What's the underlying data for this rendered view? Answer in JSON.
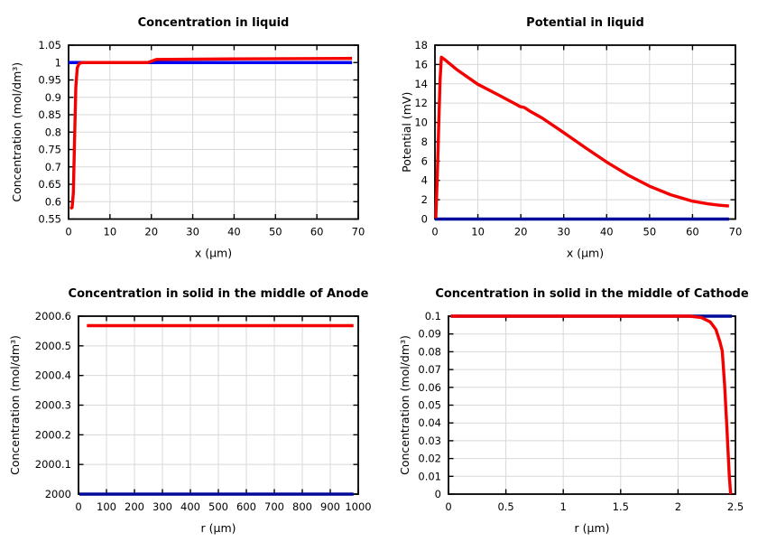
{
  "figure": {
    "background": "#ffffff",
    "grid_color": "#d8d8d8",
    "frame_color": "#000000",
    "text_color": "#000000"
  },
  "chart_data": [
    {
      "type": "line",
      "title": "Concentration in liquid",
      "xlabel": "x (µm)",
      "ylabel": "Concentration (mol/dm³)",
      "xlim": [
        0,
        70
      ],
      "ylim": [
        0.55,
        1.05
      ],
      "grid": true,
      "legend": "none",
      "xticks": [
        0,
        10,
        20,
        30,
        40,
        50,
        60,
        70
      ],
      "xtick_labels": [
        "0",
        "10",
        "20",
        "30",
        "40",
        "50",
        "60",
        "70"
      ],
      "yticks": [
        0.55,
        0.6,
        0.65,
        0.7,
        0.75,
        0.8,
        0.85,
        0.9,
        0.95,
        1,
        1.05
      ],
      "ytick_labels": [
        "0.55",
        "0.6",
        "0.65",
        "0.7",
        "0.75",
        "0.8",
        "0.85",
        "0.9",
        "0.95",
        "1",
        "1.05"
      ],
      "series": [
        {
          "name": "blue-series",
          "color": "#0000f2",
          "width": 3.4,
          "points": [
            [
              0,
              1.0
            ],
            [
              68.5,
              1.0
            ]
          ]
        },
        {
          "name": "red-series",
          "color": "#f40000",
          "width": 3.4,
          "points": [
            [
              0.4,
              0.58
            ],
            [
              0.85,
              0.583
            ],
            [
              1.15,
              0.625
            ],
            [
              1.45,
              0.78
            ],
            [
              1.75,
              0.93
            ],
            [
              2.1,
              0.985
            ],
            [
              2.6,
              0.998
            ],
            [
              3.5,
              1.0
            ],
            [
              19.2,
              1.0
            ],
            [
              20.3,
              1.005
            ],
            [
              21.2,
              1.009
            ],
            [
              40,
              1.0105
            ],
            [
              68.5,
              1.012
            ]
          ]
        }
      ]
    },
    {
      "type": "line",
      "title": "Potential in liquid",
      "xlabel": "x (µm)",
      "ylabel": "Potential (mV)",
      "xlim": [
        0,
        70
      ],
      "ylim": [
        0,
        18
      ],
      "grid": true,
      "legend": "none",
      "xticks": [
        0,
        10,
        20,
        30,
        40,
        50,
        60,
        70
      ],
      "xtick_labels": [
        "0",
        "10",
        "20",
        "30",
        "40",
        "50",
        "60",
        "70"
      ],
      "yticks": [
        0,
        2,
        4,
        6,
        8,
        10,
        12,
        14,
        16,
        18
      ],
      "ytick_labels": [
        "0",
        "2",
        "4",
        "6",
        "8",
        "10",
        "12",
        "14",
        "16",
        "18"
      ],
      "series": [
        {
          "name": "blue-series",
          "color": "#000a99",
          "width": 3.4,
          "points": [
            [
              0,
              0
            ],
            [
              68.5,
              0
            ]
          ]
        },
        {
          "name": "red-series",
          "color": "#f40000",
          "width": 3.4,
          "points": [
            [
              0.2,
              0.1
            ],
            [
              0.55,
              4.5
            ],
            [
              0.9,
              10
            ],
            [
              1.2,
              14.5
            ],
            [
              1.5,
              16.75
            ],
            [
              2.3,
              16.5
            ],
            [
              5,
              15.5
            ],
            [
              10,
              13.95
            ],
            [
              15,
              12.8
            ],
            [
              19,
              11.85
            ],
            [
              19.8,
              11.65
            ],
            [
              20.8,
              11.55
            ],
            [
              22,
              11.2
            ],
            [
              25,
              10.45
            ],
            [
              30,
              8.95
            ],
            [
              35,
              7.4
            ],
            [
              40,
              5.9
            ],
            [
              45,
              4.55
            ],
            [
              50,
              3.4
            ],
            [
              55,
              2.5
            ],
            [
              60,
              1.85
            ],
            [
              63.5,
              1.58
            ],
            [
              66,
              1.44
            ],
            [
              68.5,
              1.35
            ]
          ]
        }
      ]
    },
    {
      "type": "line",
      "title": "Concentration in solid in the middle of Anode",
      "xlabel": "r (µm)",
      "ylabel": "Concentration (mol/dm³)",
      "xlim": [
        0,
        1000
      ],
      "ylim": [
        2000,
        2000.6
      ],
      "grid": true,
      "legend": "none",
      "xticks": [
        0,
        100,
        200,
        300,
        400,
        500,
        600,
        700,
        800,
        900,
        1000
      ],
      "xtick_labels": [
        "0",
        "100",
        "200",
        "300",
        "400",
        "500",
        "600",
        "700",
        "800",
        "900",
        "1000"
      ],
      "yticks": [
        2000,
        2000.1,
        2000.2,
        2000.3,
        2000.4,
        2000.5,
        2000.6
      ],
      "ytick_labels": [
        "2000",
        "2000.1",
        "2000.2",
        "2000.3",
        "2000.4",
        "2000.5",
        "2000.6"
      ],
      "series": [
        {
          "name": "blue-series",
          "color": "#000a99",
          "width": 3.4,
          "points": [
            [
              3,
              2000.0
            ],
            [
              983,
              2000.0
            ]
          ]
        },
        {
          "name": "red-series",
          "color": "#f40000",
          "width": 3.4,
          "points": [
            [
              30,
              2000.568
            ],
            [
              983,
              2000.568
            ]
          ]
        }
      ]
    },
    {
      "type": "line",
      "title": "Concentration in solid in the middle of Cathode",
      "xlabel": "r (µm)",
      "ylabel": "Concentration (mol/dm³)",
      "xlim": [
        0,
        2.5
      ],
      "ylim": [
        0,
        0.1
      ],
      "grid": true,
      "legend": "none",
      "xticks": [
        0,
        0.5,
        1,
        1.5,
        2,
        2.5
      ],
      "xtick_labels": [
        "0",
        "0.5",
        "1",
        "1.5",
        "2",
        "2.5"
      ],
      "yticks": [
        0,
        0.01,
        0.02,
        0.03,
        0.04,
        0.05,
        0.06,
        0.07,
        0.08,
        0.09,
        0.1
      ],
      "ytick_labels": [
        "0",
        "0.01",
        "0.02",
        "0.03",
        "0.04",
        "0.05",
        "0.06",
        "0.07",
        "0.08",
        "0.09",
        "0.1"
      ],
      "series": [
        {
          "name": "blue-series",
          "color": "#000a99",
          "width": 3.4,
          "points": [
            [
              0.02,
              0.1
            ],
            [
              2.47,
              0.1
            ]
          ]
        },
        {
          "name": "red-series",
          "color": "#f40000",
          "width": 3.4,
          "points": [
            [
              0.02,
              0.1
            ],
            [
              2.1,
              0.1
            ],
            [
              2.2,
              0.0993
            ],
            [
              2.28,
              0.0968
            ],
            [
              2.33,
              0.0925
            ],
            [
              2.365,
              0.0855
            ],
            [
              2.385,
              0.0805
            ],
            [
              2.405,
              0.062
            ],
            [
              2.425,
              0.038
            ],
            [
              2.445,
              0.012
            ],
            [
              2.458,
              0.0
            ]
          ]
        }
      ]
    }
  ]
}
